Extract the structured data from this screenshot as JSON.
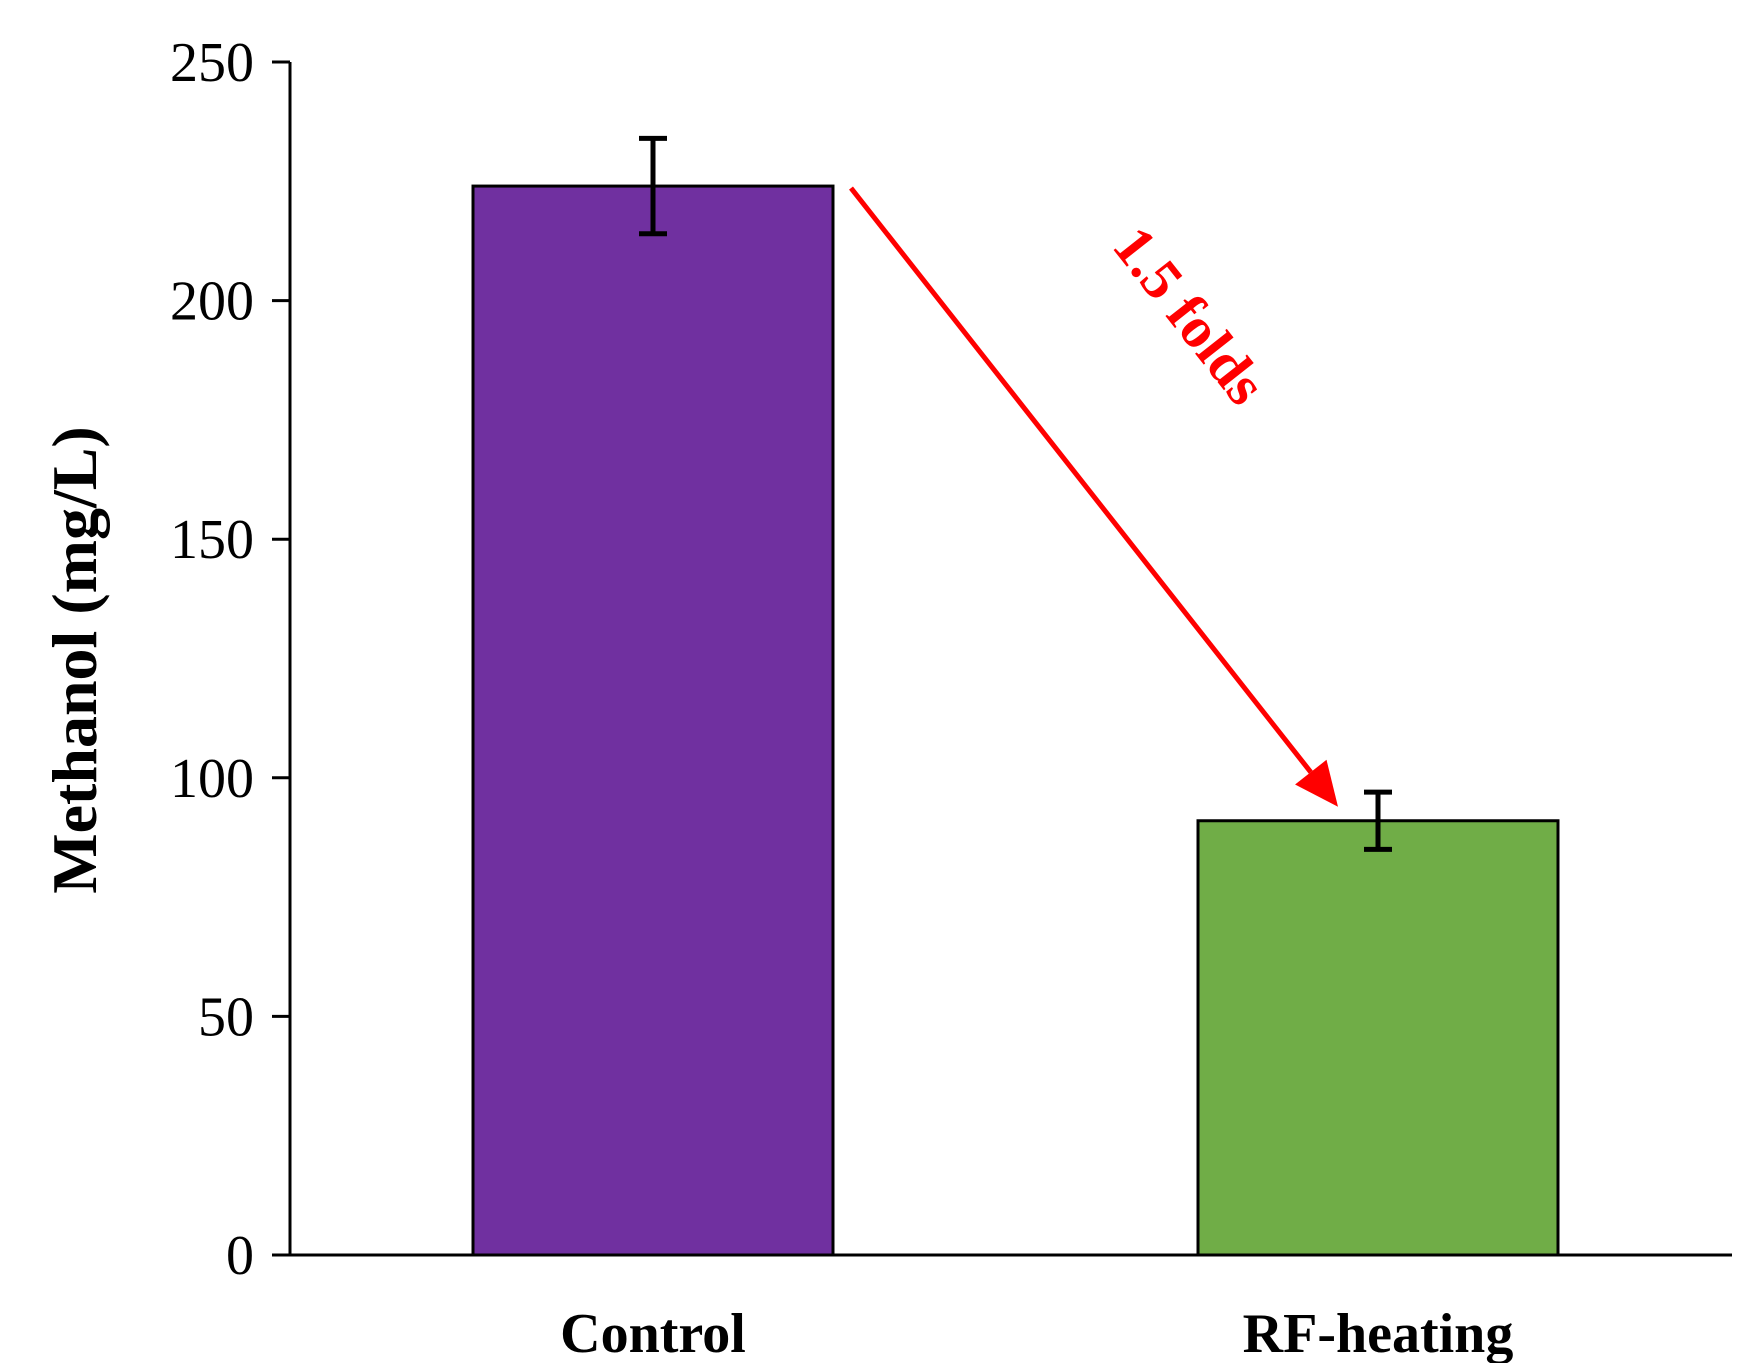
{
  "chart_data": {
    "type": "bar",
    "title": "",
    "xlabel": "",
    "ylabel": "Methanol (mg/L)",
    "ylim": [
      0,
      250
    ],
    "yticks": [
      0,
      50,
      100,
      150,
      200,
      250
    ],
    "ytick_labels": [
      "0",
      "50",
      "100",
      "150",
      "200",
      "250"
    ],
    "grid": false,
    "legend": "none",
    "categories": [
      "Control",
      "RF-heating"
    ],
    "values": [
      224,
      91
    ],
    "errors": [
      10,
      6
    ],
    "colors": [
      "#7030a0",
      "#70ad47"
    ],
    "annotation": {
      "text": "1.5 folds",
      "color": "#ff0000",
      "from_category": "Control",
      "to_category": "RF-heating"
    }
  }
}
